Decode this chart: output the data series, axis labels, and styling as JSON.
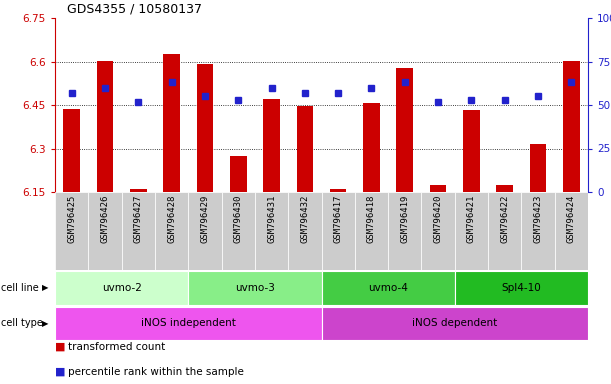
{
  "title": "GDS4355 / 10580137",
  "samples": [
    "GSM796425",
    "GSM796426",
    "GSM796427",
    "GSM796428",
    "GSM796429",
    "GSM796430",
    "GSM796431",
    "GSM796432",
    "GSM796417",
    "GSM796418",
    "GSM796419",
    "GSM796420",
    "GSM796421",
    "GSM796422",
    "GSM796423",
    "GSM796424"
  ],
  "bar_values": [
    6.435,
    6.602,
    6.162,
    6.625,
    6.592,
    6.274,
    6.47,
    6.447,
    6.162,
    6.457,
    6.577,
    6.175,
    6.432,
    6.175,
    6.315,
    6.603
  ],
  "dot_values": [
    57,
    60,
    52,
    63,
    55,
    53,
    60,
    57,
    57,
    60,
    63,
    52,
    53,
    53,
    55,
    63
  ],
  "ylim_left": [
    6.15,
    6.75
  ],
  "ylim_right": [
    0,
    100
  ],
  "bar_bottom": 6.15,
  "bar_color": "#cc0000",
  "dot_color": "#2222cc",
  "yticks_left": [
    6.15,
    6.3,
    6.45,
    6.6,
    6.75
  ],
  "ytick_labels_left": [
    "6.15",
    "6.3",
    "6.45",
    "6.6",
    "6.75"
  ],
  "yticks_right": [
    0,
    25,
    50,
    75,
    100
  ],
  "ytick_labels_right": [
    "0",
    "25",
    "50",
    "75",
    "100%"
  ],
  "dotted_lines": [
    6.3,
    6.45,
    6.6
  ],
  "cell_line_groups": [
    {
      "label": "uvmo-2",
      "start": 0,
      "end": 3,
      "color": "#ccffcc"
    },
    {
      "label": "uvmo-3",
      "start": 4,
      "end": 7,
      "color": "#88ee88"
    },
    {
      "label": "uvmo-4",
      "start": 8,
      "end": 11,
      "color": "#44cc44"
    },
    {
      "label": "Spl4-10",
      "start": 12,
      "end": 15,
      "color": "#22bb22"
    }
  ],
  "cell_type_groups": [
    {
      "label": "iNOS independent",
      "start": 0,
      "end": 7,
      "color": "#ee55ee"
    },
    {
      "label": "iNOS dependent",
      "start": 8,
      "end": 15,
      "color": "#cc44cc"
    }
  ],
  "legend_bar_label": "transformed count",
  "legend_dot_label": "percentile rank within the sample",
  "left_tick_color": "#cc0000",
  "right_tick_color": "#2222cc",
  "cell_line_label": "cell line",
  "cell_type_label": "cell type",
  "plot_bg": "#ffffff",
  "sample_box_bg": "#cccccc",
  "bar_width": 0.5
}
